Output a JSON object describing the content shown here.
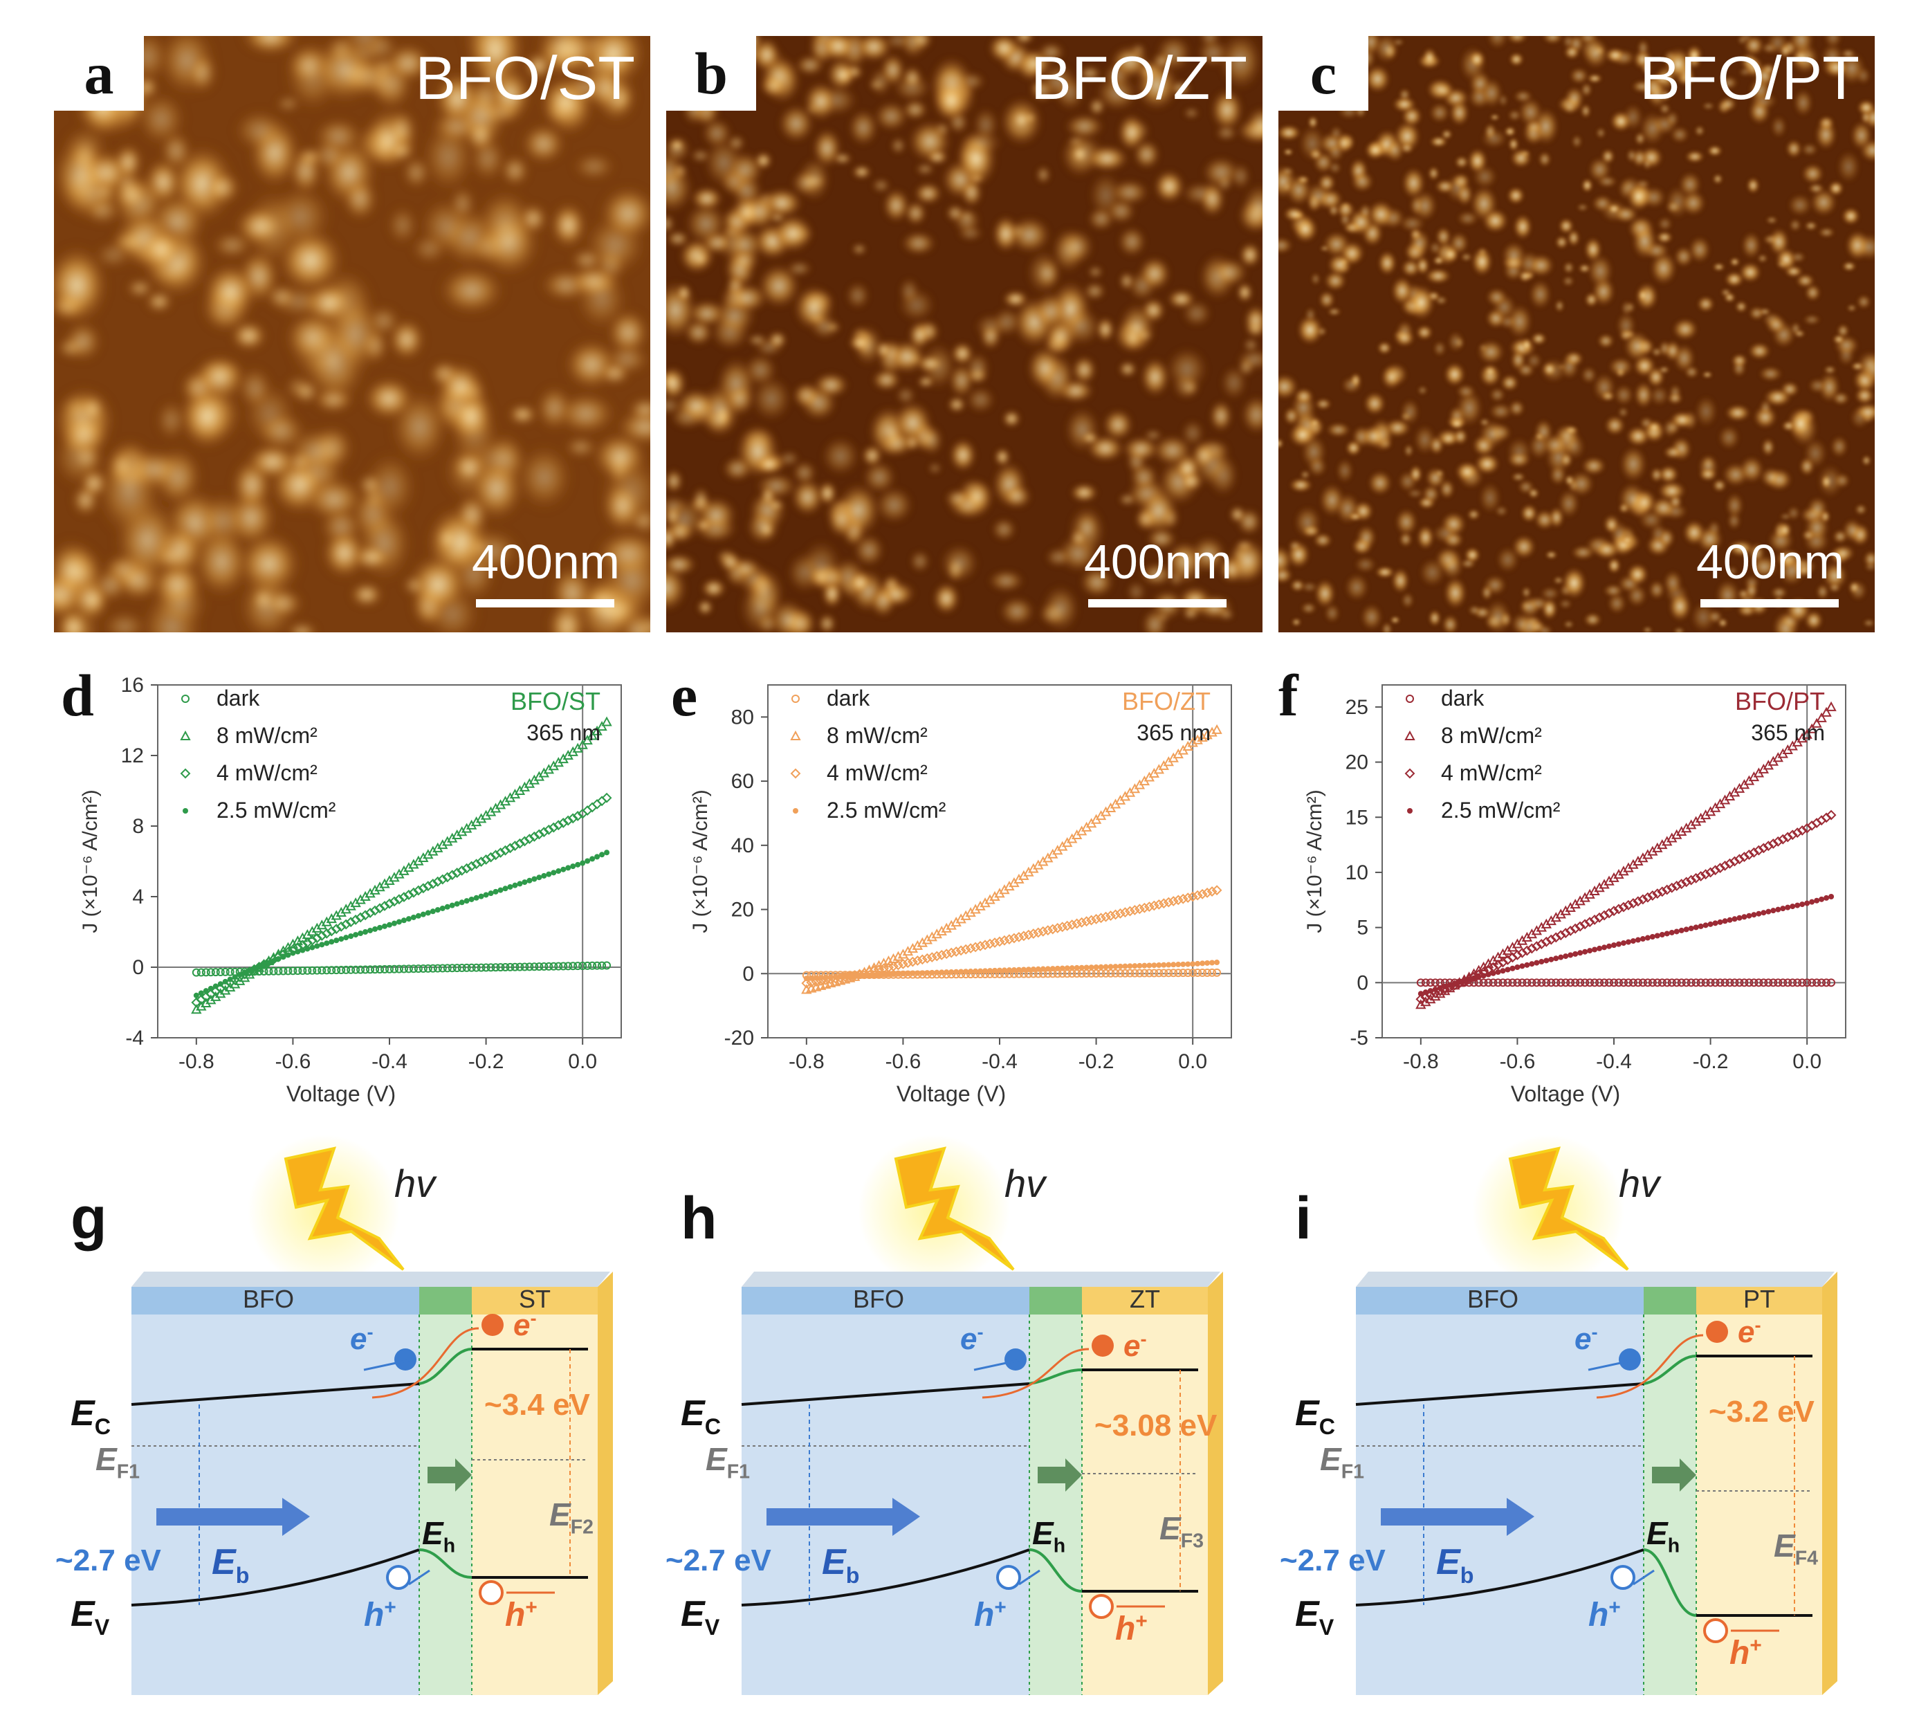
{
  "afm_panels": [
    {
      "letter": "a",
      "sample": "BFO/ST",
      "scale": "400nm"
    },
    {
      "letter": "b",
      "sample": "BFO/ZT",
      "scale": "400nm"
    },
    {
      "letter": "c",
      "sample": "BFO/PT",
      "scale": "400nm"
    }
  ],
  "chart_data": [
    {
      "panel": "d",
      "type": "scatter",
      "sample_label": "BFO/ST",
      "wavelength": "365 nm",
      "color": "#2e9a4a",
      "xlabel": "Voltage (V)",
      "ylabel": "J (×10⁻⁶ A/cm²)",
      "xlim": [
        -0.88,
        0.08
      ],
      "ylim": [
        -4,
        16
      ],
      "xticks": [
        -0.8,
        -0.6,
        -0.4,
        -0.2,
        0.0
      ],
      "xtick_labels": [
        "-0.8",
        "-0.6",
        "-0.4",
        "-0.2",
        "0.0"
      ],
      "yticks": [
        -4,
        0,
        4,
        8,
        12,
        16
      ],
      "ytick_labels": [
        "-4",
        "0",
        "4",
        "8",
        "12",
        "16"
      ],
      "series": [
        {
          "name": "dark",
          "marker": "circle",
          "x": [
            -0.8,
            0.05
          ],
          "y": [
            -0.3,
            0.1
          ]
        },
        {
          "name": "8 mW/cm²",
          "marker": "triangle",
          "x": [
            -0.8,
            -0.7,
            -0.6,
            -0.4,
            -0.2,
            0.0,
            0.05
          ],
          "y": [
            -2.4,
            -0.6,
            1.3,
            4.9,
            8.6,
            12.6,
            13.9
          ]
        },
        {
          "name": "4 mW/cm²",
          "marker": "diamond",
          "x": [
            -0.8,
            -0.7,
            -0.6,
            -0.4,
            -0.2,
            0.0,
            0.05
          ],
          "y": [
            -2.0,
            -0.4,
            1.0,
            3.6,
            6.1,
            8.7,
            9.6
          ]
        },
        {
          "name": "2.5 mW/cm²",
          "marker": "star",
          "x": [
            -0.8,
            -0.7,
            -0.6,
            -0.4,
            -0.2,
            0.0,
            0.05
          ],
          "y": [
            -1.6,
            -0.3,
            0.8,
            2.4,
            4.1,
            5.9,
            6.5
          ]
        }
      ]
    },
    {
      "panel": "e",
      "type": "scatter",
      "sample_label": "BFO/ZT",
      "wavelength": "365 nm",
      "color": "#f0a05a",
      "xlabel": "Voltage (V)",
      "ylabel": "J (×10⁻⁶ A/cm²)",
      "xlim": [
        -0.88,
        0.08
      ],
      "ylim": [
        -20,
        90
      ],
      "xticks": [
        -0.8,
        -0.6,
        -0.4,
        -0.2,
        0.0
      ],
      "xtick_labels": [
        "-0.8",
        "-0.6",
        "-0.4",
        "-0.2",
        "0.0"
      ],
      "yticks": [
        -20,
        0,
        20,
        40,
        60,
        80
      ],
      "ytick_labels": [
        "-20",
        "0",
        "20",
        "40",
        "60",
        "80"
      ],
      "series": [
        {
          "name": "dark",
          "marker": "circle",
          "x": [
            -0.8,
            0.05
          ],
          "y": [
            -0.5,
            0.3
          ]
        },
        {
          "name": "8 mW/cm²",
          "marker": "triangle",
          "x": [
            -0.8,
            -0.7,
            -0.6,
            -0.5,
            -0.4,
            -0.3,
            -0.2,
            -0.1,
            0.0,
            0.05
          ],
          "y": [
            -5,
            -1,
            6,
            15,
            25,
            36,
            48,
            60,
            72,
            76
          ]
        },
        {
          "name": "4 mW/cm²",
          "marker": "diamond",
          "x": [
            -0.8,
            -0.7,
            -0.6,
            -0.4,
            -0.2,
            0.0,
            0.05
          ],
          "y": [
            -3,
            -0.5,
            3,
            10,
            17,
            24,
            26
          ]
        },
        {
          "name": "2.5 mW/cm²",
          "marker": "star",
          "x": [
            -0.8,
            -0.6,
            -0.4,
            -0.2,
            0.0,
            0.05
          ],
          "y": [
            -1.5,
            0,
            1,
            2,
            3,
            3.5
          ]
        }
      ]
    },
    {
      "panel": "f",
      "type": "scatter",
      "sample_label": "BFO/PT",
      "wavelength": "365 nm",
      "color": "#9c2b35",
      "xlabel": "Voltage (V)",
      "ylabel": "J (×10⁻⁶ A/cm²)",
      "xlim": [
        -0.88,
        0.08
      ],
      "ylim": [
        -5,
        27
      ],
      "xticks": [
        -0.8,
        -0.6,
        -0.4,
        -0.2,
        0.0
      ],
      "xtick_labels": [
        "-0.8",
        "-0.6",
        "-0.4",
        "-0.2",
        "0.0"
      ],
      "yticks": [
        -5,
        0,
        5,
        10,
        15,
        20,
        25
      ],
      "ytick_labels": [
        "-5",
        "0",
        "5",
        "10",
        "15",
        "20",
        "25"
      ],
      "series": [
        {
          "name": "dark",
          "marker": "circle",
          "x": [
            -0.8,
            0.05
          ],
          "y": [
            0,
            0
          ]
        },
        {
          "name": "8 mW/cm²",
          "marker": "triangle",
          "x": [
            -0.8,
            -0.7,
            -0.6,
            -0.4,
            -0.2,
            0.0,
            0.05
          ],
          "y": [
            -2,
            0.5,
            3.5,
            9.5,
            15.5,
            22.5,
            25
          ]
        },
        {
          "name": "4 mW/cm²",
          "marker": "diamond",
          "x": [
            -0.8,
            -0.7,
            -0.6,
            -0.4,
            -0.2,
            0.0,
            0.05
          ],
          "y": [
            -1.5,
            0.3,
            2.5,
            6.5,
            10,
            14,
            15.2
          ]
        },
        {
          "name": "2.5 mW/cm²",
          "marker": "star",
          "x": [
            -0.8,
            -0.7,
            -0.6,
            -0.4,
            -0.2,
            0.0,
            0.05
          ],
          "y": [
            -1,
            0.3,
            1.4,
            3.4,
            5.3,
            7.2,
            7.8
          ]
        }
      ]
    }
  ],
  "diagrams": [
    {
      "letter": "g",
      "left": "BFO",
      "right": "ST",
      "gap": "~3.4 eV",
      "ef2": "E",
      "ef2_sub": "F2"
    },
    {
      "letter": "h",
      "left": "BFO",
      "right": "ZT",
      "gap": "~3.08 eV",
      "ef2": "E",
      "ef2_sub": "F3"
    },
    {
      "letter": "i",
      "left": "BFO",
      "right": "PT",
      "gap": "~3.2 eV",
      "ef2": "E",
      "ef2_sub": "F4"
    }
  ],
  "diagram_common": {
    "hv": "hv",
    "ec": "E",
    "ec_sub": "C",
    "ev": "E",
    "ev_sub": "V",
    "ef1": "E",
    "ef1_sub": "F1",
    "bfo_gap": "~2.7 eV",
    "eb": "E",
    "eb_sub": "b",
    "eh": "E",
    "eh_sub": "h",
    "electron": "e",
    "electron_sup": "-",
    "hole": "h",
    "hole_sup": "+"
  }
}
